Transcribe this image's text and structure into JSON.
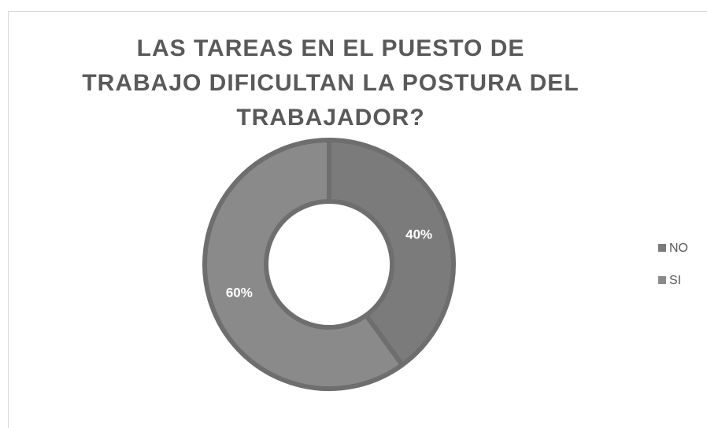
{
  "chart_data": {
    "type": "donut",
    "title": "LAS TAREAS EN EL PUESTO DE TRABAJO DIFICULTAN LA POSTURA DEL TRABAJADOR?",
    "categories": [
      "NO",
      "SI"
    ],
    "values": [
      40,
      60
    ],
    "value_labels": [
      "40%",
      "60%"
    ],
    "colors": [
      "#7b7b7b",
      "#8a8a8a"
    ],
    "legend": "right"
  }
}
